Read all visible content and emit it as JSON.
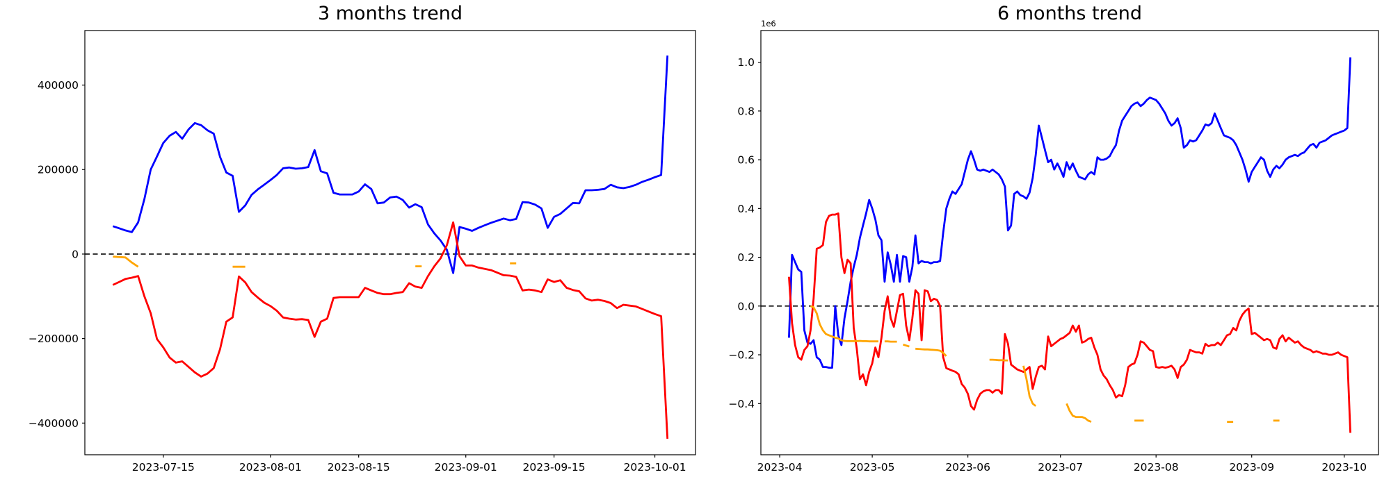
{
  "figure": {
    "background": "#ffffff"
  },
  "chart_data": [
    {
      "id": "three_months",
      "type": "line",
      "title": "3 months trend",
      "start_date": "2023-07-07",
      "x_unit": "day_index",
      "grid": false,
      "legend": null,
      "zero_line": {
        "style": "dashed",
        "color": "#000000"
      },
      "xlim": [
        -4.45,
        92.45
      ],
      "ylim": [
        -475000,
        529000
      ],
      "x_ticks": [
        {
          "day": 8,
          "label": "2023-07-15"
        },
        {
          "day": 25,
          "label": "2023-08-01"
        },
        {
          "day": 39,
          "label": "2023-08-15"
        },
        {
          "day": 56,
          "label": "2023-09-01"
        },
        {
          "day": 70,
          "label": "2023-09-15"
        },
        {
          "day": 86,
          "label": "2023-10-01"
        }
      ],
      "y_ticks": [
        {
          "value": 400000,
          "label": "400000"
        },
        {
          "value": 200000,
          "label": "200000"
        },
        {
          "value": 0,
          "label": "0"
        },
        {
          "value": -200000,
          "label": "−200000"
        },
        {
          "value": -400000,
          "label": "−400000"
        }
      ],
      "series": [
        {
          "name": "blue",
          "color": "#0000ff",
          "values": [
            66000,
            61000,
            56000,
            52000,
            75000,
            130000,
            200000,
            231000,
            263000,
            280000,
            289000,
            273000,
            295000,
            310000,
            305000,
            293000,
            285000,
            230000,
            193000,
            185000,
            100000,
            115000,
            140000,
            153000,
            164000,
            175000,
            187000,
            203000,
            205000,
            202000,
            203000,
            206000,
            246000,
            196000,
            191000,
            145000,
            141000,
            141000,
            141000,
            148000,
            165000,
            154000,
            120000,
            122000,
            134000,
            136000,
            128000,
            110000,
            118000,
            111000,
            70000,
            49000,
            32000,
            10000,
            -45000,
            64000,
            60000,
            55000,
            62000,
            68000,
            74000,
            79000,
            84000,
            80000,
            83000,
            123000,
            122000,
            117000,
            108000,
            62000,
            88000,
            95000,
            108000,
            121000,
            120000,
            151000,
            151000,
            152000,
            154000,
            164000,
            158000,
            156000,
            159000,
            164000,
            171000,
            176000,
            182000,
            187000,
            470000
          ]
        },
        {
          "name": "red",
          "color": "#ff0000",
          "values": [
            -73000,
            -66000,
            -59000,
            -56000,
            -52000,
            -100000,
            -140000,
            -201000,
            -221000,
            -245000,
            -257000,
            -254000,
            -267000,
            -280000,
            -290000,
            -283000,
            -270000,
            -225000,
            -160000,
            -150000,
            -53000,
            -67000,
            -90000,
            -103000,
            -115000,
            -123000,
            -134000,
            -150000,
            -153000,
            -155000,
            -154000,
            -156000,
            -196000,
            -160000,
            -153000,
            -104000,
            -102000,
            -102000,
            -102000,
            -102000,
            -80000,
            -86000,
            -92000,
            -95000,
            -95000,
            -92000,
            -90000,
            -69000,
            -77000,
            -80000,
            -52000,
            -29000,
            -10000,
            21000,
            75000,
            -5000,
            -27000,
            -27000,
            -32000,
            -35000,
            -38000,
            -44000,
            -50000,
            -51000,
            -54000,
            -86000,
            -84000,
            -86000,
            -90000,
            -60000,
            -66000,
            -62000,
            -80000,
            -85000,
            -88000,
            -105000,
            -110000,
            -108000,
            -111000,
            -116000,
            -128000,
            -120000,
            -122000,
            -124000,
            -130000,
            -136000,
            -142000,
            -147000,
            -437000
          ]
        },
        {
          "name": "orange",
          "color": "#ffa500",
          "values": [
            -6000,
            -7000,
            -8000,
            -20000,
            -30000,
            null,
            null,
            null,
            null,
            null,
            null,
            null,
            null,
            null,
            null,
            null,
            null,
            null,
            null,
            -30000,
            -30000,
            -30000,
            null,
            null,
            null,
            null,
            null,
            null,
            null,
            null,
            null,
            null,
            null,
            null,
            null,
            null,
            null,
            null,
            null,
            null,
            null,
            null,
            null,
            null,
            null,
            null,
            null,
            null,
            -29000,
            -29000,
            null,
            null,
            null,
            null,
            null,
            null,
            null,
            null,
            null,
            null,
            null,
            null,
            null,
            -22000,
            -22000,
            null,
            null,
            null,
            null,
            null,
            null,
            null,
            null,
            null,
            null,
            null,
            null,
            null,
            null,
            null,
            null,
            null,
            null,
            null,
            null,
            null,
            null,
            null,
            null
          ]
        }
      ]
    },
    {
      "id": "six_months",
      "type": "line",
      "title": "6 months trend",
      "start_date": "2023-04-04",
      "x_unit": "day_index",
      "grid": false,
      "legend": null,
      "offset_label": "1e6",
      "zero_line": {
        "style": "dashed",
        "color": "#000000"
      },
      "xlim": [
        -9.1,
        191.1
      ],
      "ylim": [
        -610000,
        1130000
      ],
      "x_ticks": [
        {
          "day": -3,
          "label": "2023-04"
        },
        {
          "day": 27,
          "label": "2023-05"
        },
        {
          "day": 58,
          "label": "2023-06"
        },
        {
          "day": 88,
          "label": "2023-07"
        },
        {
          "day": 119,
          "label": "2023-08"
        },
        {
          "day": 150,
          "label": "2023-09"
        },
        {
          "day": 180,
          "label": "2023-10"
        }
      ],
      "y_ticks": [
        {
          "value": 1000000,
          "label": "1.0"
        },
        {
          "value": 800000,
          "label": "0.8"
        },
        {
          "value": 600000,
          "label": "0.6"
        },
        {
          "value": 400000,
          "label": "0.4"
        },
        {
          "value": 200000,
          "label": "0.2"
        },
        {
          "value": 0,
          "label": "0.0"
        },
        {
          "value": -200000,
          "label": "−0.2"
        },
        {
          "value": -400000,
          "label": "−0.4"
        }
      ],
      "series": [
        {
          "name": "blue",
          "color": "#0000ff",
          "values": [
            -130000,
            210000,
            180000,
            150000,
            140000,
            -100000,
            -150000,
            -155000,
            -140000,
            -210000,
            -220000,
            -250000,
            -250000,
            -253000,
            -253000,
            0,
            -120000,
            -160000,
            -50000,
            20000,
            100000,
            160000,
            210000,
            280000,
            330000,
            380000,
            435000,
            400000,
            355000,
            290000,
            270000,
            100000,
            220000,
            170000,
            100000,
            210000,
            100000,
            205000,
            200000,
            100000,
            160000,
            290000,
            175000,
            185000,
            180000,
            180000,
            175000,
            180000,
            180000,
            185000,
            300000,
            400000,
            440000,
            470000,
            460000,
            480000,
            500000,
            550000,
            600000,
            635000,
            600000,
            560000,
            555000,
            560000,
            555000,
            550000,
            560000,
            550000,
            540000,
            520000,
            490000,
            310000,
            330000,
            460000,
            470000,
            455000,
            450000,
            440000,
            465000,
            525000,
            620000,
            740000,
            690000,
            640000,
            590000,
            600000,
            560000,
            585000,
            560000,
            530000,
            590000,
            560000,
            585000,
            555000,
            530000,
            525000,
            520000,
            540000,
            550000,
            540000,
            610000,
            600000,
            600000,
            605000,
            615000,
            640000,
            660000,
            720000,
            760000,
            780000,
            800000,
            820000,
            830000,
            835000,
            820000,
            830000,
            845000,
            855000,
            850000,
            845000,
            830000,
            810000,
            790000,
            760000,
            740000,
            750000,
            770000,
            730000,
            650000,
            660000,
            680000,
            675000,
            680000,
            700000,
            720000,
            745000,
            740000,
            750000,
            790000,
            760000,
            730000,
            700000,
            695000,
            690000,
            680000,
            660000,
            630000,
            600000,
            560000,
            510000,
            550000,
            570000,
            590000,
            610000,
            600000,
            555000,
            530000,
            560000,
            575000,
            565000,
            580000,
            600000,
            610000,
            615000,
            620000,
            615000,
            625000,
            630000,
            645000,
            660000,
            665000,
            650000,
            670000,
            675000,
            680000,
            690000,
            700000,
            705000,
            710000,
            715000,
            720000,
            730000,
            1020000
          ]
        },
        {
          "name": "red",
          "color": "#ff0000",
          "values": [
            120000,
            -70000,
            -160000,
            -210000,
            -220000,
            -180000,
            -165000,
            -100000,
            30000,
            235000,
            240000,
            250000,
            345000,
            370000,
            375000,
            375000,
            380000,
            200000,
            135000,
            190000,
            175000,
            -90000,
            -175000,
            -300000,
            -280000,
            -325000,
            -270000,
            -235000,
            -170000,
            -210000,
            -130000,
            -20000,
            40000,
            -50000,
            -85000,
            -20000,
            45000,
            50000,
            -80000,
            -140000,
            -50000,
            65000,
            50000,
            -140000,
            65000,
            60000,
            20000,
            30000,
            25000,
            0,
            -210000,
            -255000,
            -260000,
            -265000,
            -270000,
            -280000,
            -320000,
            -335000,
            -360000,
            -410000,
            -425000,
            -385000,
            -360000,
            -350000,
            -345000,
            -345000,
            -355000,
            -345000,
            -345000,
            -360000,
            -115000,
            -155000,
            -240000,
            -250000,
            -260000,
            -265000,
            -270000,
            -260000,
            -250000,
            -340000,
            -290000,
            -250000,
            -245000,
            -260000,
            -125000,
            -165000,
            -155000,
            -145000,
            -135000,
            -130000,
            -120000,
            -110000,
            -80000,
            -105000,
            -80000,
            -150000,
            -145000,
            -135000,
            -130000,
            -170000,
            -200000,
            -260000,
            -285000,
            -300000,
            -325000,
            -345000,
            -375000,
            -365000,
            -370000,
            -325000,
            -250000,
            -240000,
            -235000,
            -200000,
            -145000,
            -150000,
            -165000,
            -180000,
            -185000,
            -250000,
            -253000,
            -250000,
            -253000,
            -250000,
            -245000,
            -260000,
            -295000,
            -250000,
            -240000,
            -220000,
            -180000,
            -185000,
            -190000,
            -190000,
            -195000,
            -155000,
            -165000,
            -160000,
            -160000,
            -150000,
            -160000,
            -140000,
            -120000,
            -115000,
            -90000,
            -100000,
            -60000,
            -35000,
            -20000,
            -10000,
            -115000,
            -110000,
            -120000,
            -130000,
            -140000,
            -135000,
            -140000,
            -170000,
            -175000,
            -135000,
            -120000,
            -145000,
            -130000,
            -140000,
            -150000,
            -145000,
            -160000,
            -170000,
            -175000,
            -180000,
            -190000,
            -185000,
            -190000,
            -195000,
            -195000,
            -200000,
            -200000,
            -195000,
            -190000,
            -200000,
            -205000,
            -210000,
            -520000
          ]
        },
        {
          "name": "orange",
          "color": "#ffa500",
          "values": [
            null,
            null,
            null,
            null,
            null,
            null,
            null,
            0,
            -5000,
            -30000,
            -75000,
            -100000,
            -115000,
            -120000,
            -125000,
            -130000,
            -133000,
            -140000,
            -143000,
            -144000,
            -144000,
            -144000,
            -144000,
            -143000,
            -144000,
            -144000,
            -145000,
            -145000,
            -145000,
            -145000,
            null,
            -145000,
            -145000,
            -146000,
            -146000,
            -146000,
            null,
            -158000,
            -162000,
            -166000,
            null,
            -175000,
            -176000,
            -177000,
            -178000,
            -178000,
            -179000,
            -180000,
            -181000,
            -183000,
            -192000,
            -205000,
            null,
            null,
            null,
            null,
            null,
            null,
            null,
            null,
            null,
            null,
            null,
            null,
            null,
            -220000,
            -220000,
            -221000,
            -222000,
            -222000,
            -223000,
            -223000,
            null,
            null,
            null,
            null,
            -245000,
            -300000,
            -370000,
            -400000,
            -410000,
            null,
            null,
            null,
            null,
            null,
            null,
            null,
            null,
            null,
            -400000,
            -430000,
            -450000,
            -455000,
            -455000,
            -455000,
            -460000,
            -470000,
            -475000,
            null,
            null,
            null,
            null,
            null,
            null,
            null,
            null,
            null,
            null,
            null,
            null,
            null,
            -470000,
            -470000,
            -470000,
            -470000,
            null,
            null,
            null,
            null,
            null,
            null,
            null,
            null,
            null,
            null,
            null,
            null,
            null,
            null,
            null,
            null,
            null,
            null,
            null,
            null,
            null,
            null,
            null,
            null,
            null,
            null,
            -475000,
            -475000,
            -475000,
            null,
            null,
            null,
            null,
            null,
            null,
            null,
            null,
            null,
            null,
            null,
            null,
            -470000,
            -470000,
            -470000,
            null,
            null,
            null,
            null,
            null,
            null,
            null,
            null,
            null,
            null,
            null,
            null,
            null,
            null,
            null,
            null,
            null,
            null,
            null,
            null,
            null,
            null,
            null
          ]
        }
      ]
    }
  ]
}
